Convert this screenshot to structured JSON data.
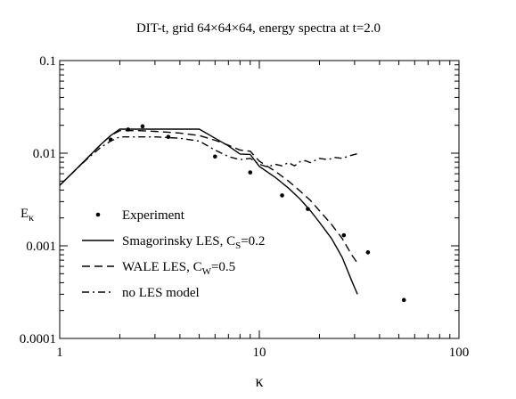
{
  "chart_data": {
    "type": "line",
    "title": "DIT-t, grid 64×64×64, energy spectra at t=2.0",
    "xlabel": "κ",
    "ylabel": {
      "main": "E",
      "sub": "κ"
    },
    "x_scale": "log",
    "y_scale": "log",
    "xlim": [
      1,
      100
    ],
    "ylim": [
      0.0001,
      0.1
    ],
    "x_ticks": [
      {
        "value": 1,
        "label": "1"
      },
      {
        "value": 10,
        "label": "10"
      },
      {
        "value": 100,
        "label": "100"
      }
    ],
    "y_ticks": [
      {
        "value": 0.0001,
        "label": "0.0001"
      },
      {
        "value": 0.001,
        "label": "0.001"
      },
      {
        "value": 0.01,
        "label": "0.01"
      },
      {
        "value": 0.1,
        "label": "0.1"
      }
    ],
    "grid": false,
    "legend_position": "lower-left",
    "series": [
      {
        "name": "Experiment",
        "legend_main": "Experiment",
        "legend_sub": "",
        "legend_tail": "",
        "style": "points",
        "x": [
          1.8,
          2.2,
          2.6,
          3.5,
          6.0,
          9.0,
          13.0,
          17.5,
          26.5,
          35.0,
          53.0
        ],
        "y": [
          0.014,
          0.018,
          0.0195,
          0.015,
          0.0092,
          0.0062,
          0.0035,
          0.0025,
          0.0013,
          0.00085,
          0.00026
        ]
      },
      {
        "name": "Smagorinsky LES, CS=0.2",
        "legend_main": "Smagorinsky LES, C",
        "legend_sub": "S",
        "legend_tail": "=0.2",
        "style": "solid",
        "x": [
          1,
          1.1,
          1.2,
          1.4,
          1.6,
          1.8,
          2.0,
          2.5,
          3.0,
          4.0,
          5.0,
          6.0,
          7.0,
          8.0,
          9.0,
          10.0,
          12.0,
          14.0,
          16.0,
          18.0,
          20.0,
          23.0,
          26.0,
          29.0,
          31.0
        ],
        "y": [
          0.0045,
          0.0055,
          0.0066,
          0.0092,
          0.0123,
          0.0155,
          0.0182,
          0.0182,
          0.0182,
          0.0182,
          0.0182,
          0.0145,
          0.012,
          0.0098,
          0.0097,
          0.0072,
          0.0055,
          0.0042,
          0.0032,
          0.0024,
          0.0018,
          0.0012,
          0.00075,
          0.00042,
          0.0003
        ]
      },
      {
        "name": "WALE LES, CW=0.5",
        "legend_main": "WALE LES, C",
        "legend_sub": "W",
        "legend_tail": "=0.5",
        "style": "dashed",
        "x": [
          1,
          1.1,
          1.2,
          1.4,
          1.6,
          1.8,
          2.0,
          2.5,
          3.0,
          4.0,
          5.0,
          6.0,
          7.0,
          8.0,
          9.0,
          10.0,
          12.0,
          14.0,
          16.0,
          18.0,
          20.0,
          23.0,
          26.0,
          29.0,
          31.0
        ],
        "y": [
          0.0045,
          0.0055,
          0.0066,
          0.0092,
          0.0123,
          0.0155,
          0.0175,
          0.0175,
          0.0172,
          0.0165,
          0.0155,
          0.0138,
          0.0122,
          0.0108,
          0.0105,
          0.0082,
          0.0064,
          0.005,
          0.0039,
          0.0031,
          0.0024,
          0.0017,
          0.0012,
          0.0008,
          0.00065
        ]
      },
      {
        "name": "no LES model",
        "legend_main": "no LES model",
        "legend_sub": "",
        "legend_tail": "",
        "style": "dashdot",
        "x": [
          1,
          1.1,
          1.2,
          1.4,
          1.6,
          1.8,
          2.0,
          2.5,
          3.0,
          4.0,
          5.0,
          6.0,
          7.0,
          8.0,
          9.0,
          10.0,
          11.0,
          12.0,
          13.0,
          14.0,
          15.0,
          16.0,
          17.0,
          18.0,
          20.0,
          22.0,
          24.0,
          26.0,
          28.0,
          31.0
        ],
        "y": [
          0.0045,
          0.0055,
          0.0066,
          0.009,
          0.0115,
          0.0135,
          0.015,
          0.015,
          0.015,
          0.0145,
          0.0135,
          0.0108,
          0.0092,
          0.0085,
          0.0088,
          0.0076,
          0.0071,
          0.0076,
          0.0073,
          0.0079,
          0.0073,
          0.0081,
          0.0083,
          0.0079,
          0.0088,
          0.0085,
          0.009,
          0.0088,
          0.0093,
          0.0099
        ]
      }
    ]
  }
}
